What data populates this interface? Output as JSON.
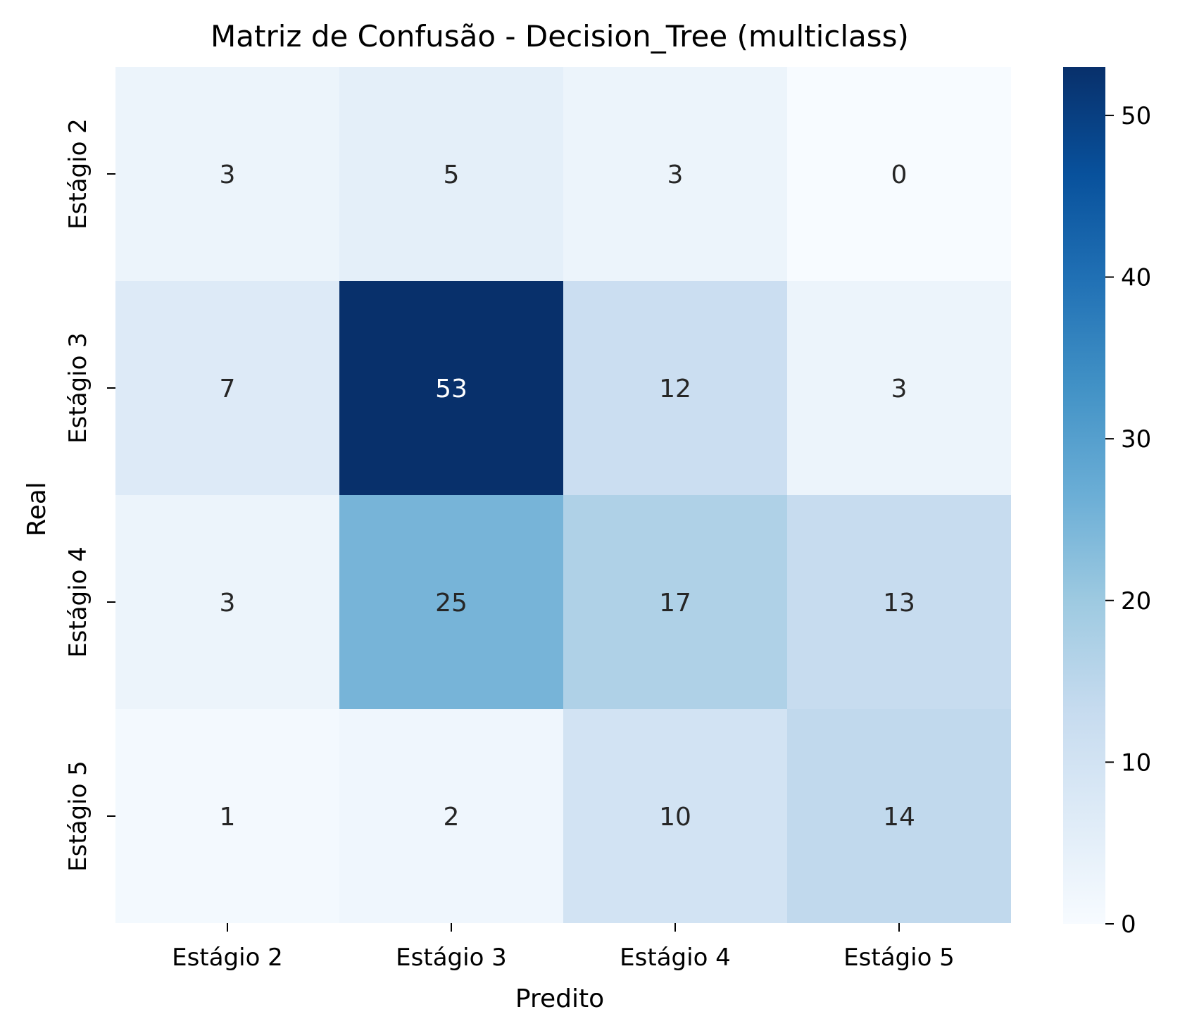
{
  "chart_data": {
    "type": "heatmap",
    "title": "Matriz de Confusão - Decision_Tree (multiclass)",
    "xlabel": "Predito",
    "ylabel": "Real",
    "x_categories": [
      "Estágio 2",
      "Estágio 3",
      "Estágio 4",
      "Estágio 5"
    ],
    "y_categories": [
      "Estágio 2",
      "Estágio 3",
      "Estágio 4",
      "Estágio 5"
    ],
    "values": [
      [
        3,
        5,
        3,
        0
      ],
      [
        7,
        53,
        12,
        3
      ],
      [
        3,
        25,
        17,
        13
      ],
      [
        1,
        2,
        10,
        14
      ]
    ],
    "colorbar": {
      "range": [
        0,
        53
      ],
      "ticks": [
        "0",
        "10",
        "20",
        "30",
        "40",
        "50"
      ],
      "colormap": "Blues"
    },
    "colors": {
      "low": "#f7fbff",
      "high": "#08306b",
      "text_dark": "#262626",
      "text_light": "#ffffff"
    }
  }
}
